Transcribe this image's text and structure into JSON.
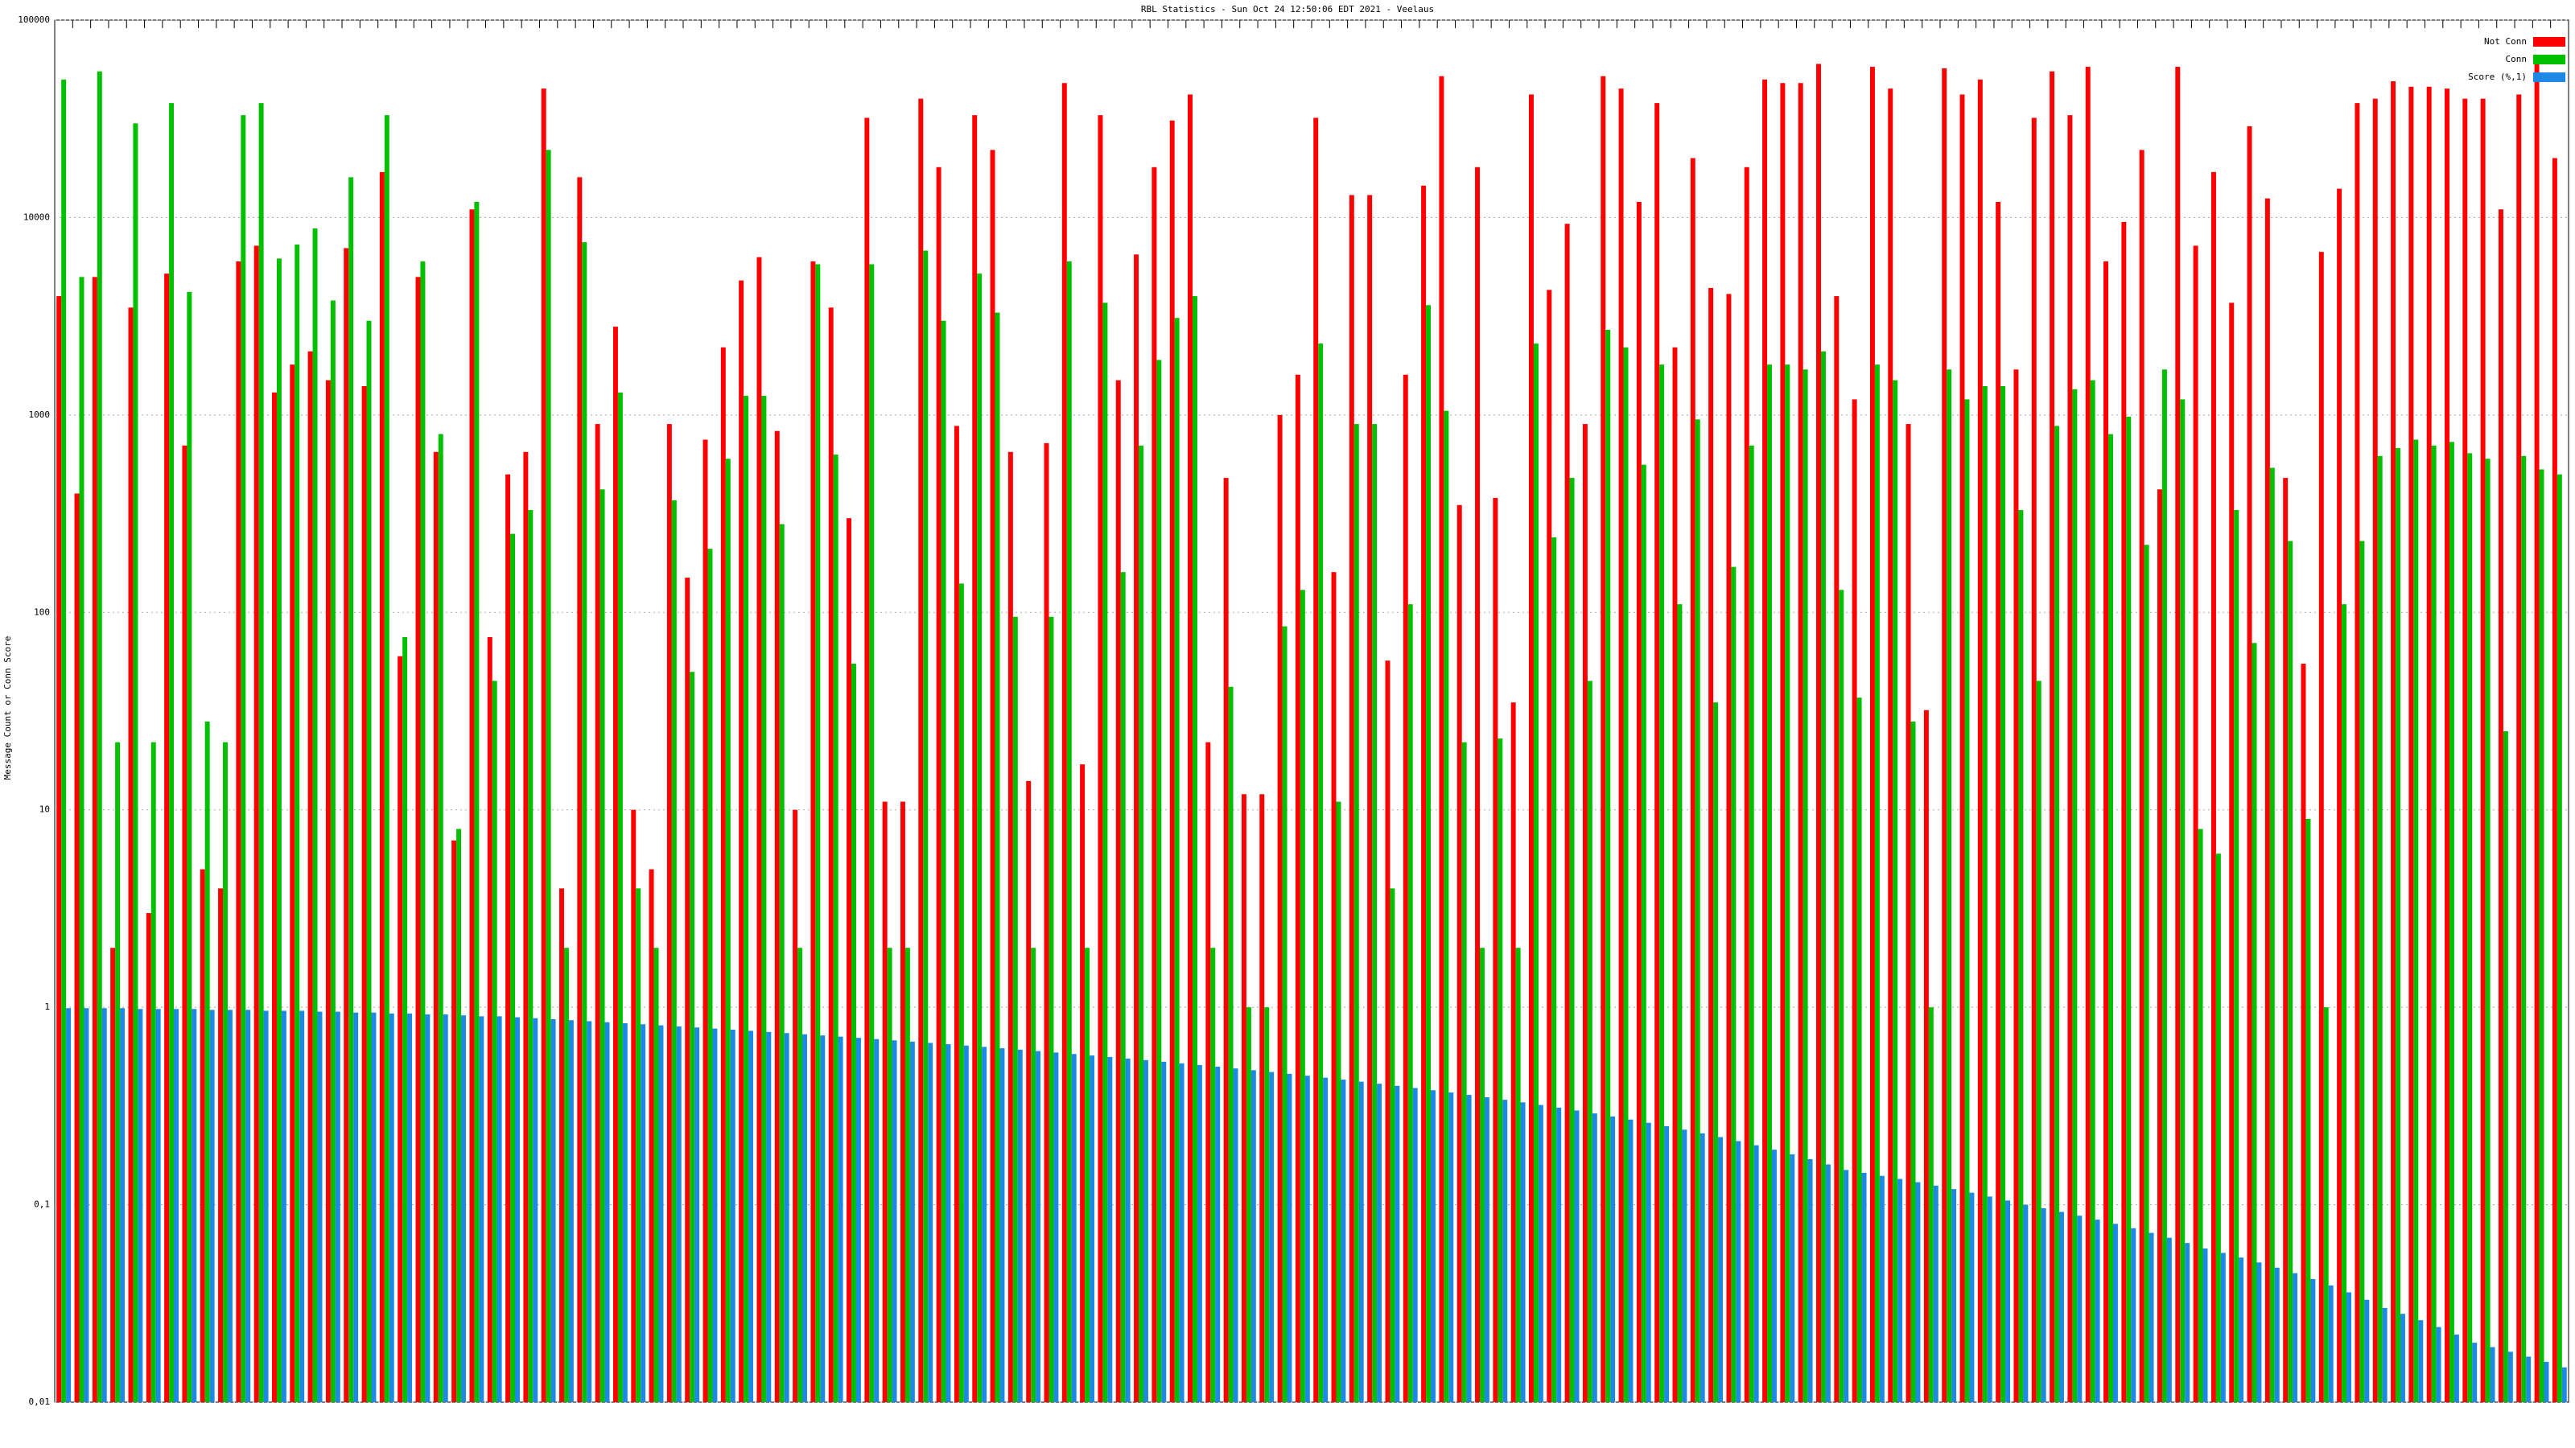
{
  "chart_data": {
    "type": "bar",
    "title": "RBL Statistics - Sun Oct 24 12:50:06 EDT 2021 - Veelaus",
    "y_label": "Message Count or Conn Score",
    "log_scale": true,
    "grid": true,
    "legend": "top-right",
    "ylim": [
      0.01,
      100000
    ],
    "yticks": [
      {
        "value": 0.01,
        "label": "0,01"
      },
      {
        "value": 0.1,
        "label": "0,1"
      },
      1,
      10,
      100,
      1000,
      10000,
      100000
    ],
    "categories": [
      null,
      null,
      null,
      null,
      null,
      null,
      null,
      null,
      null,
      null,
      null,
      null,
      null,
      null,
      null,
      null,
      null,
      null,
      null,
      null,
      null,
      null,
      null,
      null,
      null,
      null,
      null,
      null,
      null,
      null,
      null,
      null,
      null,
      null,
      null,
      null,
      null,
      null,
      null,
      null,
      null,
      null,
      null,
      null,
      null,
      null,
      null,
      null,
      null,
      null,
      null,
      null,
      null,
      null,
      null,
      null,
      null,
      null,
      null,
      null,
      null,
      null,
      null,
      null,
      null,
      null,
      null,
      null,
      null,
      null,
      null,
      null,
      null,
      null,
      null,
      null,
      null,
      null,
      null,
      null,
      null,
      null,
      null,
      null,
      null,
      null,
      null,
      null,
      null,
      null,
      null,
      null,
      null,
      null,
      null,
      null,
      null,
      null,
      null,
      null,
      null,
      null,
      null,
      null,
      null,
      null,
      null,
      null,
      null,
      null,
      null,
      null,
      null,
      null,
      null,
      null,
      null,
      null,
      null,
      null,
      null,
      null,
      null,
      null,
      null,
      null,
      null,
      null,
      null,
      null,
      null,
      null,
      null,
      null,
      null,
      null,
      null,
      null,
      null,
      null
    ],
    "series": [
      {
        "name": "Not Conn",
        "color": "#ff0000",
        "values": [
          4000,
          400,
          5000,
          2,
          3500,
          3,
          5200,
          700,
          5,
          4,
          6000,
          7200,
          1300,
          1800,
          2100,
          1500,
          7000,
          1400,
          17000,
          60,
          5000,
          650,
          7,
          11000,
          75,
          500,
          650,
          45000,
          4,
          16000,
          900,
          2800,
          10,
          5,
          900,
          150,
          750,
          2200,
          4800,
          6300,
          830,
          10,
          6000,
          3500,
          300,
          32000,
          11,
          11,
          40000,
          18000,
          880,
          33000,
          22000,
          650,
          14,
          720,
          48000,
          17,
          33000,
          1500,
          6500,
          18000,
          31000,
          42000,
          22,
          480,
          12,
          12,
          1000,
          1600,
          32000,
          160,
          13000,
          13000,
          57,
          1600,
          14500,
          52000,
          350,
          18000,
          380,
          35,
          42000,
          4300,
          9300,
          900,
          52000,
          45000,
          12000,
          38000,
          2200,
          20000,
          4400,
          4100,
          18000,
          50000,
          48000,
          48000,
          60000,
          4000,
          1200,
          58000,
          45000,
          900,
          32,
          57000,
          42000,
          50000,
          12000,
          1700,
          32000,
          55000,
          33000,
          58000,
          6000,
          9500,
          22000,
          420,
          58000,
          7200,
          17000,
          3700,
          29000,
          12500,
          480,
          55,
          6700,
          14000,
          38000,
          40000,
          49000,
          46000,
          46000,
          45000,
          40000,
          40000,
          11000,
          42000,
          62000,
          20000
        ]
      },
      {
        "name": "Conn",
        "color": "#00c000",
        "values": [
          50000,
          5000,
          55000,
          22,
          30000,
          22,
          38000,
          4200,
          28,
          22,
          33000,
          38000,
          6200,
          7300,
          8800,
          3800,
          16000,
          3000,
          33000,
          75,
          6000,
          800,
          8,
          12000,
          45,
          250,
          330,
          22000,
          2,
          7500,
          420,
          1300,
          4,
          2,
          370,
          50,
          210,
          600,
          1250,
          1250,
          280,
          2,
          5800,
          630,
          55,
          5800,
          2,
          2,
          6800,
          3000,
          140,
          5200,
          3300,
          95,
          2,
          95,
          6000,
          2,
          3700,
          160,
          700,
          1900,
          3100,
          4000,
          2,
          42,
          1,
          1,
          85,
          130,
          2300,
          11,
          900,
          900,
          4,
          110,
          3600,
          1050,
          22,
          2,
          23,
          2,
          2300,
          240,
          480,
          45,
          2700,
          2200,
          560,
          1800,
          110,
          950,
          35,
          170,
          700,
          1800,
          1800,
          1700,
          2100,
          130,
          37,
          1800,
          1500,
          28,
          1,
          1700,
          1200,
          1400,
          1400,
          330,
          45,
          880,
          1350,
          1500,
          800,
          980,
          220,
          1700,
          1200,
          8,
          6,
          330,
          70,
          540,
          230,
          9,
          1,
          110,
          230,
          620,
          680,
          750,
          700,
          730,
          640,
          600,
          25,
          620,
          530,
          500
        ]
      },
      {
        "name": "Score (%,1)",
        "color": "#1e88e5",
        "values": [
          0.99,
          0.99,
          0.99,
          0.99,
          0.98,
          0.98,
          0.98,
          0.98,
          0.97,
          0.97,
          0.97,
          0.96,
          0.96,
          0.96,
          0.95,
          0.95,
          0.94,
          0.94,
          0.93,
          0.93,
          0.92,
          0.92,
          0.91,
          0.9,
          0.9,
          0.89,
          0.88,
          0.87,
          0.86,
          0.85,
          0.84,
          0.83,
          0.82,
          0.81,
          0.8,
          0.79,
          0.78,
          0.77,
          0.76,
          0.75,
          0.74,
          0.73,
          0.72,
          0.71,
          0.7,
          0.69,
          0.68,
          0.67,
          0.66,
          0.65,
          0.64,
          0.63,
          0.62,
          0.61,
          0.6,
          0.59,
          0.58,
          0.57,
          0.56,
          0.55,
          0.54,
          0.53,
          0.52,
          0.51,
          0.5,
          0.49,
          0.48,
          0.47,
          0.46,
          0.45,
          0.44,
          0.43,
          0.42,
          0.41,
          0.4,
          0.39,
          0.38,
          0.37,
          0.36,
          0.35,
          0.34,
          0.33,
          0.32,
          0.31,
          0.3,
          0.29,
          0.28,
          0.27,
          0.26,
          0.25,
          0.24,
          0.23,
          0.22,
          0.21,
          0.2,
          0.19,
          0.18,
          0.17,
          0.16,
          0.15,
          0.145,
          0.14,
          0.135,
          0.13,
          0.125,
          0.12,
          0.115,
          0.11,
          0.105,
          0.1,
          0.096,
          0.092,
          0.088,
          0.084,
          0.08,
          0.076,
          0.072,
          0.068,
          0.064,
          0.06,
          0.057,
          0.054,
          0.051,
          0.048,
          0.045,
          0.042,
          0.039,
          0.036,
          0.033,
          0.03,
          0.028,
          0.026,
          0.024,
          0.022,
          0.02,
          0.019,
          0.018,
          0.017,
          0.016,
          0.015
        ]
      }
    ]
  }
}
